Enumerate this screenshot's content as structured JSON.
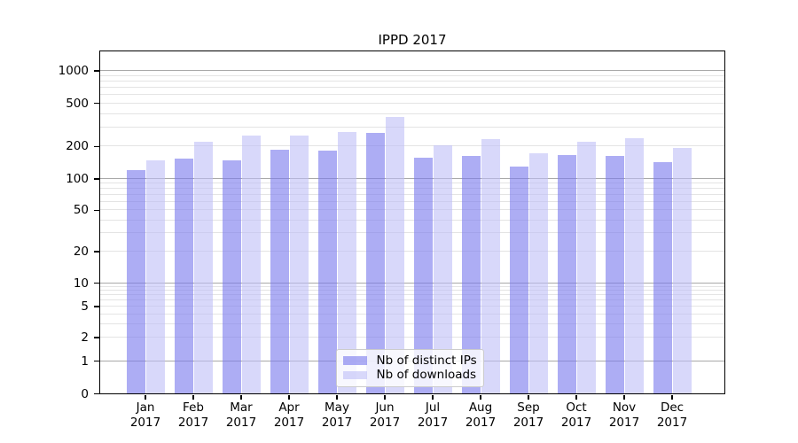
{
  "title": "IPPD 2017",
  "chart_data": {
    "type": "bar",
    "title": "IPPD 2017",
    "categories": [
      "Jan",
      "Feb",
      "Mar",
      "Apr",
      "May",
      "Jun",
      "Jul",
      "Aug",
      "Sep",
      "Oct",
      "Nov",
      "Dec"
    ],
    "category_year": "2017",
    "series": [
      {
        "name": "Nb of distinct IPs",
        "color": "#acacf4",
        "fill": "rgba(122,122,237,0.62)",
        "values": [
          119,
          153,
          146,
          184,
          180,
          265,
          156,
          161,
          129,
          166,
          161,
          141
        ]
      },
      {
        "name": "Nb of downloads",
        "color": "#d8d8fa",
        "fill": "rgba(190,190,246,0.60)",
        "values": [
          148,
          218,
          250,
          250,
          268,
          368,
          203,
          231,
          172,
          220,
          234,
          192
        ]
      }
    ],
    "xlabel": "",
    "ylabel": "",
    "y_scale": "symlog",
    "y_ticks": [
      0,
      1,
      2,
      5,
      10,
      20,
      50,
      100,
      200,
      500,
      1000
    ],
    "ylim": [
      0,
      1500
    ],
    "grid": "both",
    "legend_position": "lower-center",
    "grid_major_color": "#a9a9a9",
    "grid_minor_color": "#e4e4e4"
  }
}
